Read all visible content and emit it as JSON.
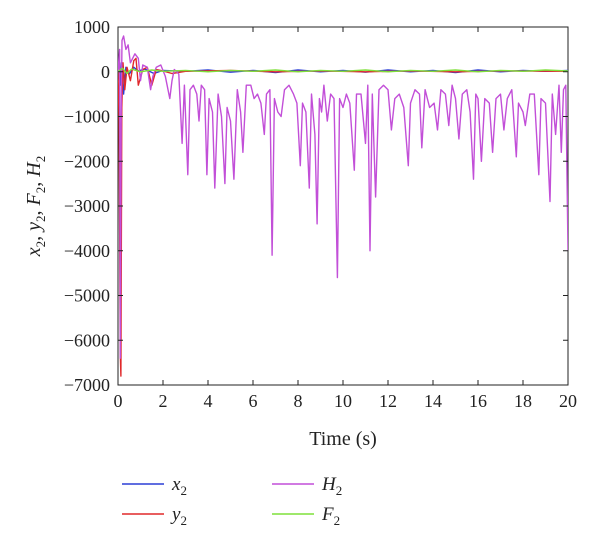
{
  "chart_data": {
    "type": "line",
    "title": "",
    "xlabel": "Time (s)",
    "ylabel": "x2, y2, F2, H2",
    "xlim": [
      0,
      20
    ],
    "ylim": [
      -7000,
      1000
    ],
    "x_ticks": [
      0,
      2,
      4,
      6,
      8,
      10,
      12,
      14,
      16,
      18,
      20
    ],
    "y_ticks": [
      1000,
      0,
      -1000,
      -2000,
      -3000,
      -4000,
      -5000,
      -6000,
      -7000
    ],
    "grid": false,
    "legend_position": "bottom",
    "series": [
      {
        "name": "x2",
        "color": "#2b3fd6",
        "points": [
          [
            0,
            0
          ],
          [
            0.1,
            -300
          ],
          [
            0.15,
            200
          ],
          [
            0.25,
            -500
          ],
          [
            0.35,
            100
          ],
          [
            0.5,
            -50
          ],
          [
            0.7,
            100
          ],
          [
            0.9,
            20
          ],
          [
            1.2,
            60
          ],
          [
            1.6,
            -40
          ],
          [
            2,
            30
          ],
          [
            3,
            10
          ],
          [
            4,
            40
          ],
          [
            5,
            -10
          ],
          [
            6,
            30
          ],
          [
            7,
            -20
          ],
          [
            8,
            40
          ],
          [
            9,
            0
          ],
          [
            10,
            30
          ],
          [
            11,
            -10
          ],
          [
            12,
            40
          ],
          [
            13,
            0
          ],
          [
            14,
            30
          ],
          [
            15,
            -20
          ],
          [
            16,
            40
          ],
          [
            17,
            0
          ],
          [
            18,
            30
          ],
          [
            19,
            10
          ],
          [
            20,
            30
          ]
        ]
      },
      {
        "name": "y2",
        "color": "#e0282a",
        "points": [
          [
            0,
            0
          ],
          [
            0.05,
            -1100
          ],
          [
            0.1,
            -6300
          ],
          [
            0.13,
            -6800
          ],
          [
            0.17,
            -800
          ],
          [
            0.22,
            200
          ],
          [
            0.3,
            -400
          ],
          [
            0.4,
            100
          ],
          [
            0.55,
            -200
          ],
          [
            0.7,
            250
          ],
          [
            0.8,
            300
          ],
          [
            0.9,
            -300
          ],
          [
            1.1,
            50
          ],
          [
            1.3,
            100
          ],
          [
            1.5,
            -300
          ],
          [
            1.7,
            50
          ],
          [
            2,
            20
          ],
          [
            2.4,
            -40
          ],
          [
            3,
            10
          ],
          [
            5,
            30
          ],
          [
            7,
            0
          ],
          [
            9,
            20
          ],
          [
            11,
            0
          ],
          [
            13,
            20
          ],
          [
            15,
            0
          ],
          [
            17,
            20
          ],
          [
            20,
            10
          ]
        ]
      },
      {
        "name": "H2",
        "color": "#c24fd8",
        "points": [
          [
            0,
            0
          ],
          [
            0.07,
            500
          ],
          [
            0.1,
            -6400
          ],
          [
            0.14,
            -1000
          ],
          [
            0.18,
            700
          ],
          [
            0.25,
            800
          ],
          [
            0.35,
            500
          ],
          [
            0.45,
            600
          ],
          [
            0.55,
            200
          ],
          [
            0.75,
            400
          ],
          [
            0.9,
            300
          ],
          [
            1.0,
            -200
          ],
          [
            1.1,
            150
          ],
          [
            1.3,
            100
          ],
          [
            1.45,
            -400
          ],
          [
            1.55,
            -100
          ],
          [
            1.7,
            100
          ],
          [
            1.9,
            150
          ],
          [
            2.1,
            -100
          ],
          [
            2.3,
            -600
          ],
          [
            2.4,
            -200
          ],
          [
            2.5,
            50
          ],
          [
            2.7,
            -50
          ],
          [
            2.85,
            -1600
          ],
          [
            2.95,
            -300
          ],
          [
            3.1,
            -2300
          ],
          [
            3.2,
            -400
          ],
          [
            3.35,
            -300
          ],
          [
            3.5,
            -500
          ],
          [
            3.6,
            -1100
          ],
          [
            3.7,
            -300
          ],
          [
            3.85,
            -400
          ],
          [
            3.95,
            -2300
          ],
          [
            4.05,
            -600
          ],
          [
            4.2,
            -900
          ],
          [
            4.3,
            -2600
          ],
          [
            4.45,
            -500
          ],
          [
            4.6,
            -1000
          ],
          [
            4.75,
            -2500
          ],
          [
            4.85,
            -800
          ],
          [
            5.0,
            -1100
          ],
          [
            5.15,
            -2400
          ],
          [
            5.3,
            -400
          ],
          [
            5.45,
            -900
          ],
          [
            5.55,
            -1800
          ],
          [
            5.7,
            -300
          ],
          [
            5.9,
            -300
          ],
          [
            6.05,
            -600
          ],
          [
            6.2,
            -500
          ],
          [
            6.35,
            -700
          ],
          [
            6.5,
            -1400
          ],
          [
            6.6,
            -500
          ],
          [
            6.75,
            -400
          ],
          [
            6.85,
            -4100
          ],
          [
            6.95,
            -600
          ],
          [
            7.1,
            -900
          ],
          [
            7.25,
            -1000
          ],
          [
            7.4,
            -400
          ],
          [
            7.6,
            -300
          ],
          [
            7.8,
            -500
          ],
          [
            7.95,
            -700
          ],
          [
            8.1,
            -2100
          ],
          [
            8.2,
            -700
          ],
          [
            8.35,
            -900
          ],
          [
            8.5,
            -2600
          ],
          [
            8.6,
            -500
          ],
          [
            8.75,
            -1400
          ],
          [
            8.85,
            -3400
          ],
          [
            8.95,
            -600
          ],
          [
            9.05,
            -900
          ],
          [
            9.15,
            -300
          ],
          [
            9.3,
            -1100
          ],
          [
            9.45,
            -500
          ],
          [
            9.6,
            -600
          ],
          [
            9.75,
            -4600
          ],
          [
            9.85,
            -600
          ],
          [
            10.0,
            -800
          ],
          [
            10.15,
            -500
          ],
          [
            10.3,
            -700
          ],
          [
            10.5,
            -2200
          ],
          [
            10.6,
            -500
          ],
          [
            10.8,
            -500
          ],
          [
            11.0,
            -1600
          ],
          [
            11.1,
            -300
          ],
          [
            11.2,
            -4000
          ],
          [
            11.3,
            -500
          ],
          [
            11.45,
            -2800
          ],
          [
            11.6,
            -400
          ],
          [
            11.8,
            -300
          ],
          [
            12.0,
            -400
          ],
          [
            12.15,
            -1300
          ],
          [
            12.3,
            -600
          ],
          [
            12.5,
            -500
          ],
          [
            12.7,
            -800
          ],
          [
            12.9,
            -2100
          ],
          [
            13.0,
            -700
          ],
          [
            13.2,
            -400
          ],
          [
            13.4,
            -500
          ],
          [
            13.5,
            -1700
          ],
          [
            13.65,
            -400
          ],
          [
            13.85,
            -800
          ],
          [
            14.05,
            -700
          ],
          [
            14.2,
            -1300
          ],
          [
            14.35,
            -400
          ],
          [
            14.55,
            -500
          ],
          [
            14.7,
            -1200
          ],
          [
            14.85,
            -300
          ],
          [
            15.0,
            -600
          ],
          [
            15.15,
            -1500
          ],
          [
            15.3,
            -500
          ],
          [
            15.5,
            -400
          ],
          [
            15.65,
            -900
          ],
          [
            15.8,
            -2400
          ],
          [
            15.9,
            -500
          ],
          [
            16.0,
            -600
          ],
          [
            16.15,
            -2000
          ],
          [
            16.3,
            -600
          ],
          [
            16.5,
            -700
          ],
          [
            16.65,
            -1800
          ],
          [
            16.8,
            -600
          ],
          [
            17.0,
            -500
          ],
          [
            17.15,
            -1300
          ],
          [
            17.3,
            -600
          ],
          [
            17.5,
            -400
          ],
          [
            17.7,
            -1900
          ],
          [
            17.8,
            -700
          ],
          [
            18.0,
            -900
          ],
          [
            18.1,
            -1200
          ],
          [
            18.3,
            -500
          ],
          [
            18.5,
            -500
          ],
          [
            18.7,
            -2300
          ],
          [
            18.8,
            -600
          ],
          [
            19.0,
            -700
          ],
          [
            19.2,
            -2900
          ],
          [
            19.3,
            -500
          ],
          [
            19.45,
            -1400
          ],
          [
            19.6,
            -300
          ],
          [
            19.7,
            -1800
          ],
          [
            19.8,
            -400
          ],
          [
            19.9,
            -300
          ],
          [
            20.0,
            -4000
          ]
        ]
      },
      {
        "name": "F2",
        "color": "#7fe03a",
        "points": [
          [
            0,
            0
          ],
          [
            0.2,
            80
          ],
          [
            0.4,
            -40
          ],
          [
            0.6,
            60
          ],
          [
            1,
            0
          ],
          [
            1.5,
            40
          ],
          [
            2,
            10
          ],
          [
            3,
            30
          ],
          [
            4,
            0
          ],
          [
            5,
            30
          ],
          [
            6,
            10
          ],
          [
            7,
            40
          ],
          [
            8,
            0
          ],
          [
            9,
            30
          ],
          [
            10,
            10
          ],
          [
            11,
            40
          ],
          [
            12,
            0
          ],
          [
            13,
            30
          ],
          [
            14,
            10
          ],
          [
            15,
            40
          ],
          [
            16,
            0
          ],
          [
            17,
            30
          ],
          [
            18,
            10
          ],
          [
            19,
            40
          ],
          [
            20,
            20
          ]
        ]
      }
    ]
  },
  "legend": {
    "entries": [
      {
        "label": "x",
        "sub": "2",
        "color": "#2b3fd6"
      },
      {
        "label": "H",
        "sub": "2",
        "color": "#c24fd8"
      },
      {
        "label": "y",
        "sub": "2",
        "color": "#e0282a"
      },
      {
        "label": "F",
        "sub": "2",
        "color": "#7fe03a"
      }
    ]
  }
}
